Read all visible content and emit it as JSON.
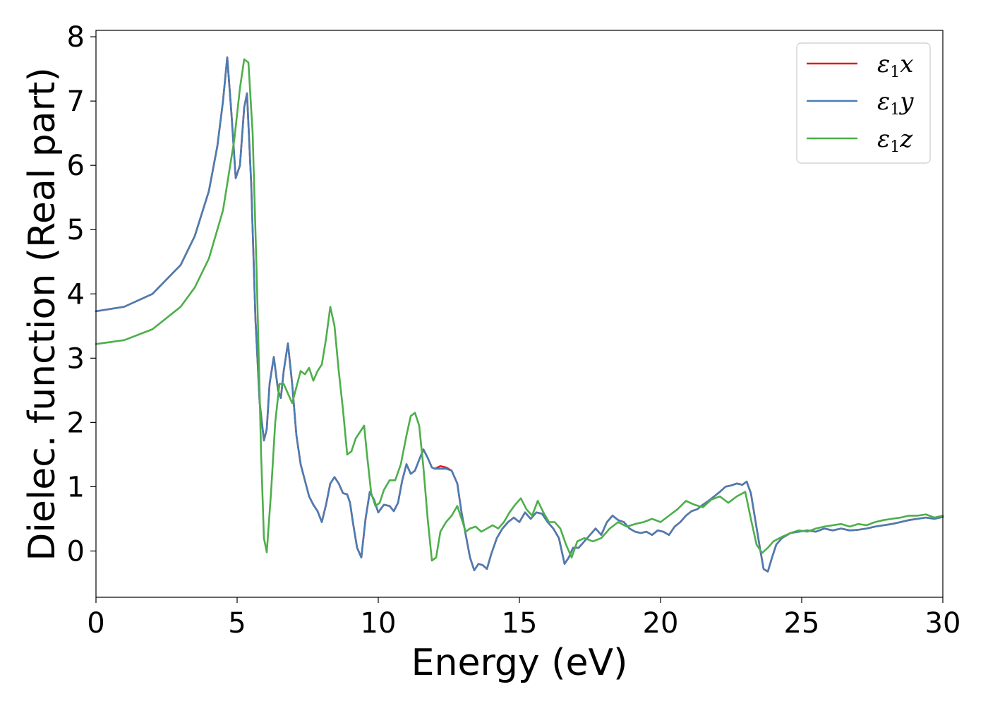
{
  "chart_data": {
    "type": "line",
    "xlabel": "Energy (eV)",
    "ylabel": "Dielec. function (Real part)",
    "xlim": [
      0,
      30
    ],
    "ylim": [
      -0.72,
      8.1
    ],
    "xticks": [
      0,
      5,
      10,
      15,
      20,
      25,
      30
    ],
    "yticks": [
      0,
      1,
      2,
      3,
      4,
      5,
      6,
      7,
      8
    ],
    "grid": false,
    "legend_position": "top-right",
    "series": [
      {
        "name": "x",
        "legend_base": "ε",
        "legend_sub": "1",
        "color": "#e41a1c",
        "x": [
          0,
          1,
          2,
          3,
          3.5,
          4,
          4.3,
          4.5,
          4.65,
          4.8,
          4.95,
          5.1,
          5.25,
          5.35,
          5.5,
          5.65,
          5.8,
          5.95,
          6.05,
          6.15,
          6.3,
          6.45,
          6.55,
          6.65,
          6.8,
          6.95,
          7.1,
          7.25,
          7.4,
          7.55,
          7.7,
          7.85,
          8.0,
          8.15,
          8.3,
          8.45,
          8.6,
          8.75,
          8.9,
          9.0,
          9.1,
          9.25,
          9.4,
          9.55,
          9.7,
          9.85,
          10.0,
          10.2,
          10.4,
          10.55,
          10.7,
          10.85,
          11.0,
          11.15,
          11.3,
          11.45,
          11.6,
          11.75,
          11.9,
          12.0,
          12.2,
          12.4,
          12.6,
          12.8,
          12.95,
          13.1,
          13.25,
          13.4,
          13.55,
          13.7,
          13.85,
          14.0,
          14.2,
          14.4,
          14.6,
          14.8,
          15.0,
          15.2,
          15.4,
          15.6,
          15.8,
          16.0,
          16.2,
          16.4,
          16.6,
          16.75,
          16.9,
          17.1,
          17.3,
          17.5,
          17.7,
          17.9,
          18.1,
          18.3,
          18.5,
          18.7,
          18.9,
          19.1,
          19.3,
          19.5,
          19.7,
          19.9,
          20.1,
          20.3,
          20.5,
          20.7,
          20.9,
          21.1,
          21.3,
          21.5,
          21.7,
          21.9,
          22.1,
          22.3,
          22.5,
          22.7,
          22.9,
          23.05,
          23.2,
          23.35,
          23.5,
          23.65,
          23.8,
          23.95,
          24.1,
          24.3,
          24.6,
          24.9,
          25.2,
          25.5,
          25.8,
          26.1,
          26.4,
          26.7,
          27.0,
          27.3,
          27.6,
          27.9,
          28.2,
          28.5,
          28.8,
          29.1,
          29.4,
          29.7,
          30.0
        ],
        "y": [
          3.73,
          3.8,
          4.0,
          4.45,
          4.9,
          5.6,
          6.3,
          7.0,
          7.68,
          6.8,
          5.8,
          6.0,
          6.9,
          7.12,
          5.7,
          3.6,
          2.3,
          1.72,
          1.9,
          2.6,
          3.02,
          2.5,
          2.38,
          2.8,
          3.23,
          2.6,
          1.8,
          1.35,
          1.1,
          0.85,
          0.72,
          0.62,
          0.45,
          0.72,
          1.05,
          1.15,
          1.05,
          0.9,
          0.88,
          0.75,
          0.45,
          0.05,
          -0.1,
          0.5,
          0.92,
          0.8,
          0.6,
          0.72,
          0.7,
          0.62,
          0.75,
          1.1,
          1.35,
          1.2,
          1.25,
          1.42,
          1.58,
          1.45,
          1.3,
          1.28,
          1.32,
          1.3,
          1.25,
          1.05,
          0.6,
          0.25,
          -0.1,
          -0.3,
          -0.2,
          -0.22,
          -0.28,
          -0.05,
          0.2,
          0.35,
          0.45,
          0.52,
          0.45,
          0.6,
          0.5,
          0.6,
          0.58,
          0.45,
          0.35,
          0.2,
          -0.2,
          -0.1,
          0.05,
          0.05,
          0.15,
          0.25,
          0.35,
          0.25,
          0.45,
          0.55,
          0.48,
          0.45,
          0.35,
          0.3,
          0.28,
          0.3,
          0.25,
          0.32,
          0.3,
          0.25,
          0.38,
          0.45,
          0.55,
          0.62,
          0.65,
          0.72,
          0.78,
          0.85,
          0.92,
          1.0,
          1.02,
          1.05,
          1.03,
          1.08,
          0.9,
          0.5,
          0.1,
          -0.28,
          -0.32,
          -0.1,
          0.1,
          0.2,
          0.28,
          0.3,
          0.32,
          0.3,
          0.35,
          0.32,
          0.35,
          0.32,
          0.33,
          0.35,
          0.38,
          0.4,
          0.42,
          0.45,
          0.48,
          0.5,
          0.52,
          0.5,
          0.53
        ]
      },
      {
        "name": "y",
        "legend_base": "ε",
        "legend_sub": "1",
        "color": "#4a7db3",
        "x": [
          0,
          1,
          2,
          3,
          3.5,
          4,
          4.3,
          4.5,
          4.65,
          4.8,
          4.95,
          5.1,
          5.25,
          5.35,
          5.5,
          5.65,
          5.8,
          5.95,
          6.05,
          6.15,
          6.3,
          6.45,
          6.55,
          6.65,
          6.8,
          6.95,
          7.1,
          7.25,
          7.4,
          7.55,
          7.7,
          7.85,
          8.0,
          8.15,
          8.3,
          8.45,
          8.6,
          8.75,
          8.9,
          9.0,
          9.1,
          9.25,
          9.4,
          9.55,
          9.7,
          9.85,
          10.0,
          10.2,
          10.4,
          10.55,
          10.7,
          10.85,
          11.0,
          11.15,
          11.3,
          11.45,
          11.6,
          11.75,
          11.9,
          12.0,
          12.2,
          12.4,
          12.6,
          12.8,
          12.95,
          13.1,
          13.25,
          13.4,
          13.55,
          13.7,
          13.85,
          14.0,
          14.2,
          14.4,
          14.6,
          14.8,
          15.0,
          15.2,
          15.4,
          15.6,
          15.8,
          16.0,
          16.2,
          16.4,
          16.6,
          16.75,
          16.9,
          17.1,
          17.3,
          17.5,
          17.7,
          17.9,
          18.1,
          18.3,
          18.5,
          18.7,
          18.9,
          19.1,
          19.3,
          19.5,
          19.7,
          19.9,
          20.1,
          20.3,
          20.5,
          20.7,
          20.9,
          21.1,
          21.3,
          21.5,
          21.7,
          21.9,
          22.1,
          22.3,
          22.5,
          22.7,
          22.9,
          23.05,
          23.2,
          23.35,
          23.5,
          23.65,
          23.8,
          23.95,
          24.1,
          24.3,
          24.6,
          24.9,
          25.2,
          25.5,
          25.8,
          26.1,
          26.4,
          26.7,
          27.0,
          27.3,
          27.6,
          27.9,
          28.2,
          28.5,
          28.8,
          29.1,
          29.4,
          29.7,
          30.0
        ],
        "y": [
          3.73,
          3.8,
          4.0,
          4.45,
          4.9,
          5.6,
          6.3,
          7.0,
          7.68,
          6.8,
          5.8,
          6.0,
          6.9,
          7.12,
          5.7,
          3.6,
          2.3,
          1.72,
          1.9,
          2.6,
          3.02,
          2.5,
          2.38,
          2.8,
          3.23,
          2.6,
          1.8,
          1.35,
          1.1,
          0.85,
          0.72,
          0.62,
          0.45,
          0.72,
          1.05,
          1.15,
          1.05,
          0.9,
          0.88,
          0.75,
          0.45,
          0.05,
          -0.1,
          0.5,
          0.92,
          0.8,
          0.6,
          0.72,
          0.7,
          0.62,
          0.75,
          1.1,
          1.35,
          1.2,
          1.25,
          1.42,
          1.58,
          1.45,
          1.3,
          1.28,
          1.28,
          1.28,
          1.25,
          1.05,
          0.6,
          0.25,
          -0.1,
          -0.3,
          -0.2,
          -0.22,
          -0.28,
          -0.05,
          0.2,
          0.35,
          0.45,
          0.52,
          0.45,
          0.6,
          0.5,
          0.6,
          0.58,
          0.45,
          0.35,
          0.2,
          -0.2,
          -0.1,
          0.05,
          0.05,
          0.15,
          0.25,
          0.35,
          0.25,
          0.45,
          0.55,
          0.48,
          0.45,
          0.35,
          0.3,
          0.28,
          0.3,
          0.25,
          0.32,
          0.3,
          0.25,
          0.38,
          0.45,
          0.55,
          0.62,
          0.65,
          0.72,
          0.78,
          0.85,
          0.92,
          1.0,
          1.02,
          1.05,
          1.03,
          1.08,
          0.9,
          0.5,
          0.1,
          -0.28,
          -0.32,
          -0.1,
          0.1,
          0.2,
          0.28,
          0.3,
          0.32,
          0.3,
          0.35,
          0.32,
          0.35,
          0.32,
          0.33,
          0.35,
          0.38,
          0.4,
          0.42,
          0.45,
          0.48,
          0.5,
          0.52,
          0.5,
          0.53
        ]
      },
      {
        "name": "z",
        "legend_base": "ε",
        "legend_sub": "1",
        "color": "#4daf4a",
        "x": [
          0,
          1,
          2,
          3,
          3.5,
          4,
          4.5,
          4.9,
          5.1,
          5.25,
          5.4,
          5.55,
          5.7,
          5.85,
          5.95,
          6.05,
          6.2,
          6.35,
          6.5,
          6.65,
          6.8,
          6.95,
          7.1,
          7.25,
          7.4,
          7.55,
          7.7,
          7.85,
          8.0,
          8.15,
          8.3,
          8.45,
          8.6,
          8.75,
          8.9,
          9.05,
          9.2,
          9.35,
          9.5,
          9.6,
          9.75,
          9.9,
          10.05,
          10.2,
          10.4,
          10.6,
          10.8,
          11.0,
          11.15,
          11.3,
          11.45,
          11.6,
          11.75,
          11.9,
          12.05,
          12.2,
          12.4,
          12.6,
          12.8,
          12.95,
          13.1,
          13.25,
          13.45,
          13.65,
          13.85,
          14.05,
          14.25,
          14.45,
          14.65,
          14.85,
          15.05,
          15.25,
          15.45,
          15.65,
          15.85,
          16.05,
          16.25,
          16.45,
          16.65,
          16.85,
          17.05,
          17.3,
          17.6,
          17.9,
          18.2,
          18.5,
          18.8,
          19.1,
          19.4,
          19.7,
          20.0,
          20.3,
          20.6,
          20.9,
          21.2,
          21.5,
          21.8,
          22.1,
          22.4,
          22.7,
          23.0,
          23.2,
          23.4,
          23.6,
          23.8,
          24.0,
          24.3,
          24.6,
          24.9,
          25.2,
          25.5,
          25.8,
          26.1,
          26.4,
          26.7,
          27.0,
          27.3,
          27.6,
          27.9,
          28.2,
          28.5,
          28.8,
          29.1,
          29.4,
          29.7,
          30.0
        ],
        "y": [
          3.22,
          3.28,
          3.45,
          3.8,
          4.1,
          4.55,
          5.3,
          6.4,
          7.2,
          7.65,
          7.6,
          6.5,
          4.2,
          1.5,
          0.2,
          -0.02,
          0.9,
          2.0,
          2.6,
          2.6,
          2.45,
          2.3,
          2.55,
          2.8,
          2.75,
          2.85,
          2.65,
          2.8,
          2.9,
          3.3,
          3.8,
          3.5,
          2.8,
          2.2,
          1.5,
          1.55,
          1.75,
          1.85,
          1.95,
          1.5,
          0.9,
          0.7,
          0.75,
          0.95,
          1.1,
          1.1,
          1.35,
          1.8,
          2.1,
          2.15,
          1.95,
          1.3,
          0.5,
          -0.15,
          -0.1,
          0.3,
          0.45,
          0.55,
          0.7,
          0.5,
          0.3,
          0.35,
          0.38,
          0.3,
          0.35,
          0.4,
          0.35,
          0.45,
          0.6,
          0.72,
          0.82,
          0.65,
          0.55,
          0.78,
          0.6,
          0.45,
          0.45,
          0.35,
          0.1,
          -0.1,
          0.15,
          0.2,
          0.15,
          0.2,
          0.35,
          0.45,
          0.38,
          0.42,
          0.45,
          0.5,
          0.45,
          0.55,
          0.65,
          0.78,
          0.72,
          0.68,
          0.8,
          0.85,
          0.75,
          0.85,
          0.92,
          0.5,
          0.1,
          -0.03,
          0.05,
          0.15,
          0.22,
          0.28,
          0.32,
          0.3,
          0.35,
          0.38,
          0.4,
          0.42,
          0.38,
          0.42,
          0.4,
          0.45,
          0.48,
          0.5,
          0.52,
          0.55,
          0.55,
          0.57,
          0.52,
          0.55
        ]
      }
    ]
  }
}
